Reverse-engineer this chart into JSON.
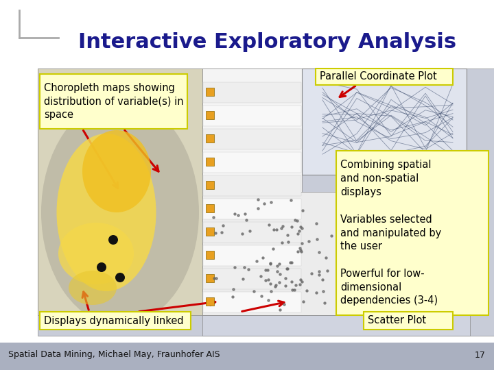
{
  "title": "Interactive Exploratory Analysis",
  "title_color": "#1a1a8c",
  "title_fontsize": 22,
  "bg_color": "#ffffff",
  "footer_text": "Spatial Data Mining, Michael May, Fraunhofer AIS",
  "page_number": "17",
  "label_choropleth": "Choropleth maps showing\ndistribution of variable(s) in\nspace",
  "label_parallel": "Parallel Coordinate Plot",
  "label_right": "Combining spatial\nand non-spatial\ndisplays\n\nVariables selected\nand manipulated by\nthe user\n\nPowerful for low-\ndimensional\ndependencies (3-4)",
  "label_displays": "Displays dynamically linked",
  "label_scatter": "Scatter Plot",
  "yellow_box_color": "#ffffcc",
  "yellow_box_edge": "#cccc00",
  "arrow_color": "#cc0000",
  "text_color": "#000000",
  "footer_bg": "#aab0c0",
  "footer_fontsize": 9,
  "slide_corner_color": "#aaaaaa"
}
